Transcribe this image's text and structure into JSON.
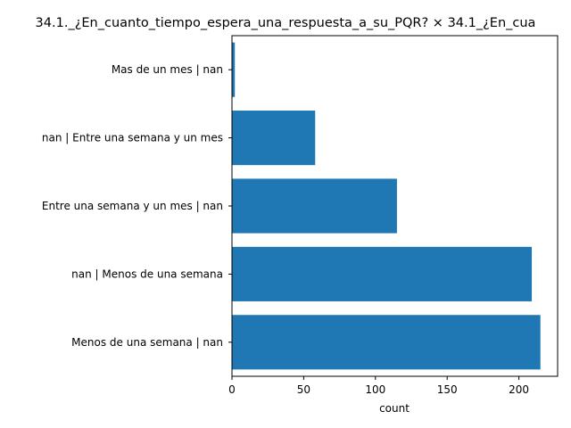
{
  "chart_data": {
    "type": "bar",
    "orientation": "horizontal",
    "title": "34.1._¿En_cuanto_tiempo_espera_una_respuesta_a_su_PQR? × 34.1_¿En_cua",
    "xlabel": "count",
    "ylabel": "",
    "xlim": [
      0,
      227
    ],
    "xticks": [
      0,
      50,
      100,
      150,
      200
    ],
    "categories": [
      "Menos de una semana | nan",
      "nan | Menos de una semana",
      "Entre una semana y un mes | nan",
      "nan | Entre una semana y un mes",
      "Mas de un mes | nan"
    ],
    "values": [
      215,
      209,
      115,
      58,
      2
    ],
    "bar_color": "#1f77b4",
    "grid": false
  }
}
